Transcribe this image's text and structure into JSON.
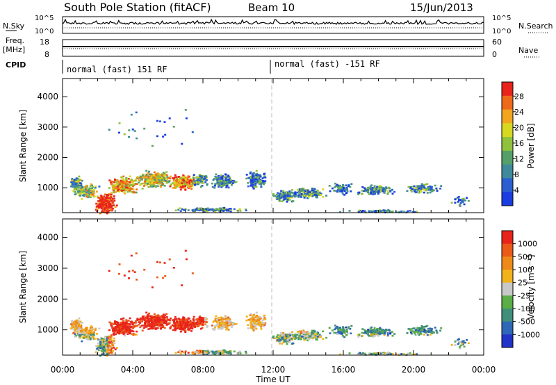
{
  "header": {
    "station": "South Pole Station (fitACF)",
    "beam": "Beam 10",
    "date": "15/Jun/2013"
  },
  "chart_data": [
    {
      "type": "line",
      "panel": "noise",
      "left_label": "N.Sky",
      "left_ticks": [
        "10^5",
        "10^0"
      ],
      "right_label": "N.Search",
      "right_ticks": [
        "10^5",
        "10^0"
      ]
    },
    {
      "type": "line",
      "panel": "frequency",
      "left_label": "Freq.",
      "left_unit": "[MHz]",
      "left_ticks": [
        18,
        8
      ],
      "right_label": "Nave",
      "right_ticks": [
        60,
        0
      ]
    },
    {
      "type": "table",
      "panel": "cpid",
      "label": "CPID",
      "segments": [
        {
          "start": "00:00",
          "text": "normal (fast) 151 RF"
        },
        {
          "start": "12:00",
          "text": "normal (fast) -151 RF"
        }
      ]
    },
    {
      "type": "heatmap",
      "panel": "power",
      "ylabel": "Slant Range [km]",
      "yticks": [
        1000,
        2000,
        3000,
        4000
      ],
      "ylim": [
        180,
        4600
      ],
      "xlabel": "Time UT",
      "xticks": [
        "00:00",
        "04:00",
        "08:00",
        "12:00",
        "16:00",
        "20:00",
        "00:00"
      ],
      "xlim_hours": [
        0,
        24
      ],
      "colorbar_label": "Power [dB]",
      "colorbar_ticks": [
        4,
        8,
        12,
        16,
        20,
        24,
        28
      ],
      "colorscale": [
        "#1a3de0",
        "#2b5fd1",
        "#3f8a9a",
        "#55a06a",
        "#8fc23e",
        "#d8d822",
        "#f2a51f",
        "#ee6a1a",
        "#e8231c"
      ]
    },
    {
      "type": "heatmap",
      "panel": "velocity",
      "ylabel": "Slant Range [km]",
      "yticks": [
        1000,
        2000,
        3000,
        4000
      ],
      "ylim": [
        180,
        4600
      ],
      "xlabel": "Time UT",
      "xticks": [
        "00:00",
        "04:00",
        "08:00",
        "12:00",
        "16:00",
        "20:00",
        "00:00"
      ],
      "xlim_hours": [
        0,
        24
      ],
      "colorbar_label": "Velocity [m s⁻¹]",
      "colorbar_ticks": [
        1000,
        500,
        100,
        25,
        -25,
        -100,
        -500,
        -1000
      ],
      "colorscale": [
        "#2233c8",
        "#2e67b8",
        "#3f8f7a",
        "#5aae45",
        "#c8c8c8",
        "#f2b21c",
        "#ee8a1a",
        "#ea5a18",
        "#e8231c"
      ]
    }
  ]
}
